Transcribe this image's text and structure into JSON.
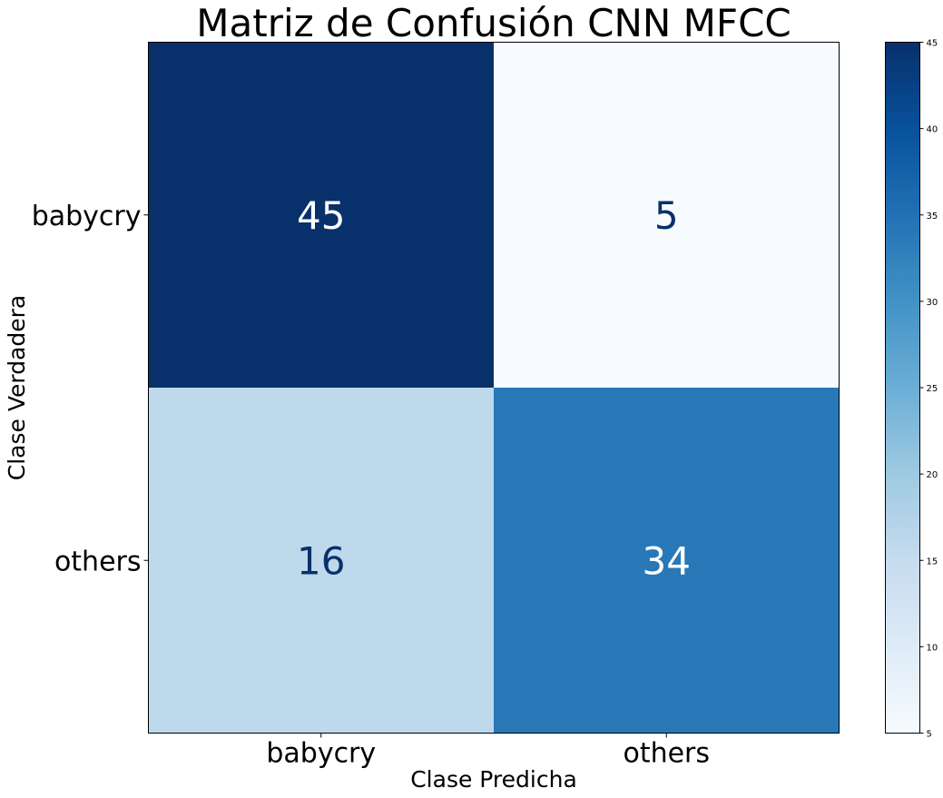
{
  "chart_data": {
    "type": "heatmap",
    "title": "Matriz de Confusión CNN MFCC",
    "xlabel": "Clase Predicha",
    "ylabel": "Clase Verdadera",
    "x_categories": [
      "babycry",
      "others"
    ],
    "y_categories": [
      "babycry",
      "others"
    ],
    "matrix": [
      [
        45,
        5
      ],
      [
        16,
        34
      ]
    ],
    "colormap": "Blues",
    "colorbar": {
      "range": [
        5,
        45
      ],
      "ticks": [
        5,
        10,
        15,
        20,
        25,
        30,
        35,
        40,
        45
      ]
    },
    "grid": false
  },
  "colors": {
    "high": "#08306b",
    "low": "#f7fbff",
    "text_dark": "#08306b",
    "text_light": "#ffffff"
  }
}
